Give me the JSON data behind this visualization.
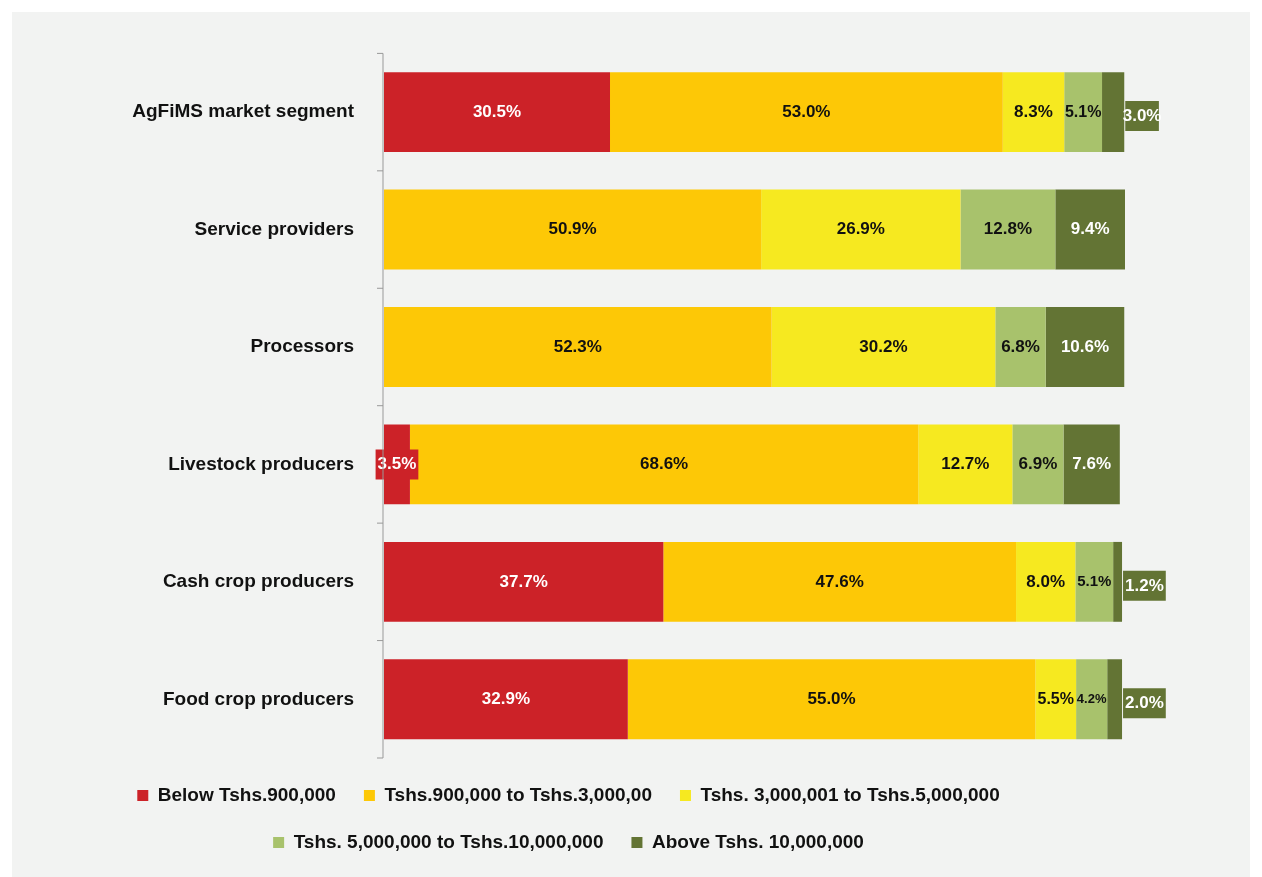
{
  "chart_data": {
    "type": "bar",
    "orientation": "horizontal",
    "stacked": true,
    "legend": "bottom",
    "tick_labels": "y",
    "categories": [
      "AgFiMS market segment",
      "Service providers",
      "Processors",
      "Livestock producers",
      "Cash crop producers",
      "Food crop producers"
    ],
    "series": [
      {
        "name": "Below Tshs.900,000",
        "color": "#cc2228",
        "values": [
          30.5,
          null,
          null,
          3.5,
          37.7,
          32.9
        ],
        "value_labels": [
          "30.5%",
          null,
          null,
          "3.5%",
          "37.7%",
          "32.9%"
        ]
      },
      {
        "name": "Tshs.900,000 to Tshs.3,000,00",
        "color": "#fdc806",
        "values": [
          53.0,
          50.9,
          52.3,
          68.6,
          47.6,
          55.0
        ],
        "value_labels": [
          "53.0%",
          "50.9%",
          "52.3%",
          "68.6%",
          "47.6%",
          "55.0%"
        ]
      },
      {
        "name": "Tshs. 3,000,001 to Tshs.5,000,000",
        "color": "#f6e920",
        "values": [
          8.3,
          26.9,
          30.2,
          12.7,
          8.0,
          5.5
        ],
        "value_labels": [
          "8.3%",
          "26.9%",
          "30.2%",
          "12.7%",
          "8.0%",
          "5.5%"
        ]
      },
      {
        "name": "Tshs. 5,000,000 to Tshs.10,000,000",
        "color": "#a8c26c",
        "values": [
          5.1,
          12.8,
          6.8,
          6.9,
          5.1,
          4.2
        ],
        "value_labels": [
          "5.1%",
          "12.8%",
          "6.8%",
          "6.9%",
          "5.1%",
          "4.2%"
        ]
      },
      {
        "name": "Above Tshs. 10,000,000",
        "color": "#637434",
        "values": [
          3.0,
          9.4,
          10.6,
          7.6,
          1.2,
          2.0
        ],
        "value_labels": [
          "3.0%",
          "9.4%",
          "10.6%",
          "7.6%",
          "1.2%",
          "2.0%"
        ]
      }
    ]
  }
}
